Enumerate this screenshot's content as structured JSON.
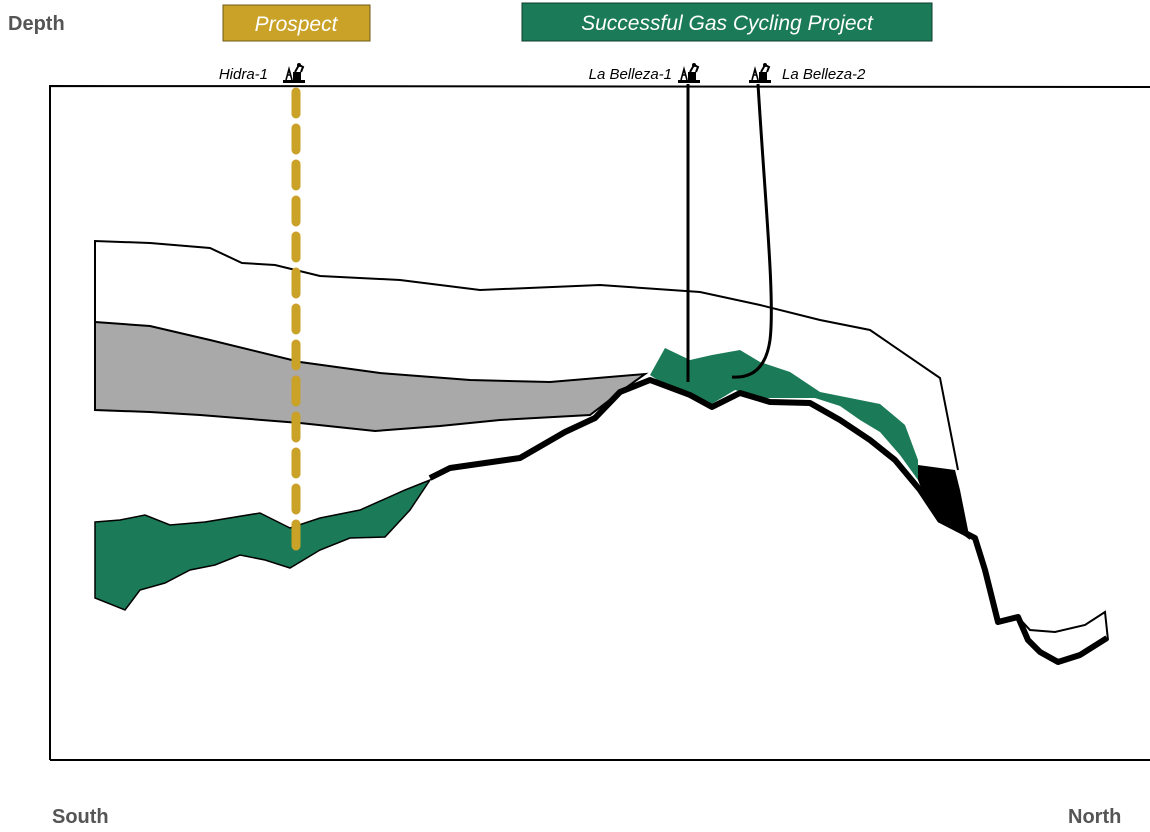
{
  "header": {
    "depth_label": "Depth"
  },
  "banners": {
    "prospect": "Prospect",
    "project": "Successful Gas Cycling Project"
  },
  "wells": [
    "Hidra-1",
    "La Belleza-1",
    "La Belleza-2"
  ],
  "directions": {
    "south": "South",
    "north": "North"
  }
}
